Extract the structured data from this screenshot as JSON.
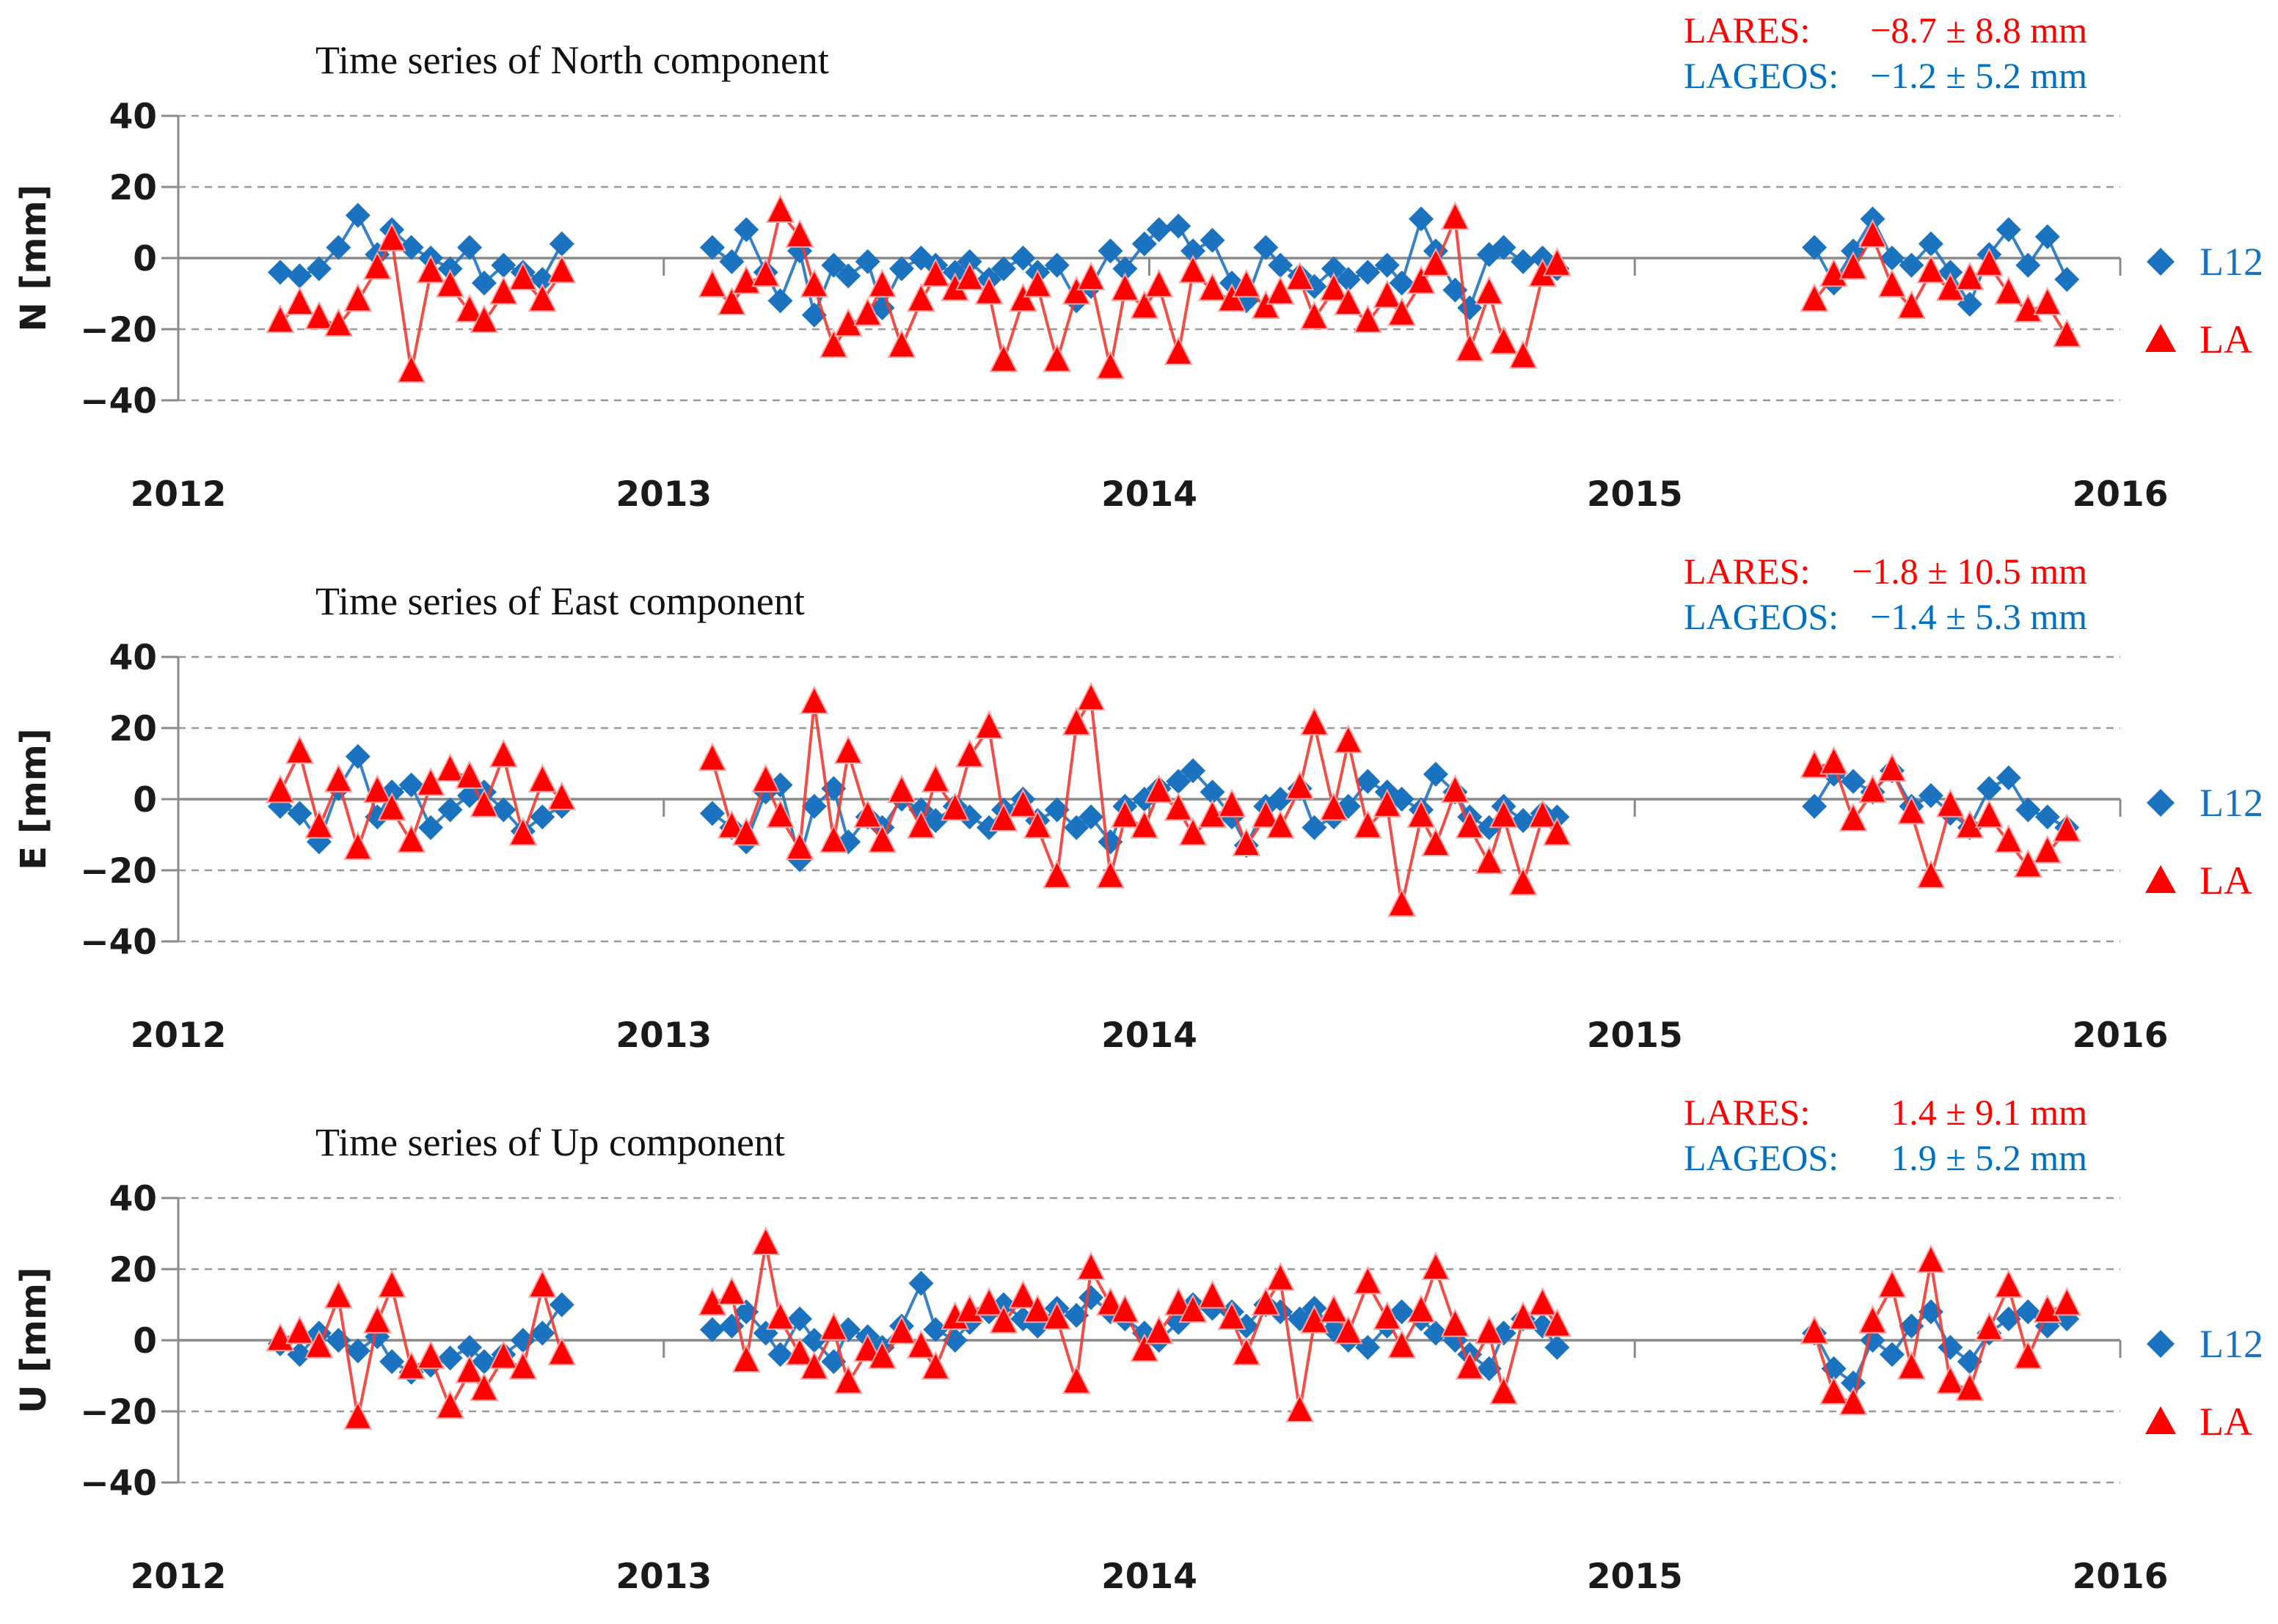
{
  "colors": {
    "lares_red": "#FF0000",
    "lares_line": "#F03B33",
    "lares_marker_edge": "#FFA3A3",
    "lageos_blue": "#1B72BE",
    "lageos_line": "#2273BE",
    "lageos_text_blue": "#0070C0",
    "grid_gray": "#999999",
    "axis_gray": "#8A8A8A",
    "tick_label": "#1A1A1A"
  },
  "legend": {
    "lageos_label": "L12",
    "lares_label": "LA"
  },
  "x_axis": {
    "years": [
      2012,
      2013,
      2014,
      2015,
      2016
    ],
    "range": [
      2012,
      2016
    ]
  },
  "y_axis": {
    "ticks": [
      40,
      20,
      0,
      -20,
      -40
    ],
    "ylim": [
      -40,
      40
    ],
    "unit": "mm"
  },
  "epochs": [
    2012.21,
    2012.25,
    2012.29,
    2012.33,
    2012.37,
    2012.41,
    2012.44,
    2012.48,
    2012.52,
    2012.56,
    2012.6,
    2012.63,
    2012.67,
    2012.71,
    2012.75,
    2012.79,
    2013.1,
    2013.14,
    2013.17,
    2013.21,
    2013.24,
    2013.28,
    2013.31,
    2013.35,
    2013.38,
    2013.42,
    2013.45,
    2013.49,
    2013.53,
    2013.56,
    2013.6,
    2013.63,
    2013.67,
    2013.7,
    2013.74,
    2013.77,
    2013.81,
    2013.85,
    2013.88,
    2013.92,
    2013.95,
    2013.99,
    2014.02,
    2014.06,
    2014.09,
    2014.13,
    2014.17,
    2014.2,
    2014.24,
    2014.27,
    2014.31,
    2014.34,
    2014.38,
    2014.41,
    2014.45,
    2014.49,
    2014.52,
    2014.56,
    2014.59,
    2014.63,
    2014.66,
    2014.7,
    2014.73,
    2014.77,
    2014.81,
    2014.84,
    2015.37,
    2015.41,
    2015.45,
    2015.49,
    2015.53,
    2015.57,
    2015.61,
    2015.65,
    2015.69,
    2015.73,
    2015.77,
    2015.81,
    2015.85,
    2015.89
  ],
  "chart_data": [
    {
      "type": "scatter",
      "title": "Time series of North component",
      "ylabel": "N [mm]",
      "xlabel": "",
      "ylim": [
        -40,
        40
      ],
      "legend_position": "right",
      "grid": true,
      "stats": {
        "lares_label": "LARES:",
        "lares_value": "−8.7 ± 8.8 mm",
        "lageos_label": "LAGEOS:",
        "lageos_value": "−1.2 ± 5.2 mm"
      },
      "series": [
        {
          "name": "L12",
          "satellite": "LAGEOS",
          "marker": "diamond",
          "values": [
            -4,
            -5,
            -3,
            3,
            12,
            1,
            8,
            3,
            0,
            -3,
            3,
            -7,
            -2,
            -4,
            -6,
            4,
            3,
            -1,
            8,
            -4,
            -12,
            2,
            -16,
            -2,
            -5,
            -1,
            -14,
            -3,
            0,
            -2,
            -4,
            -1,
            -6,
            -3,
            0,
            -4,
            -2,
            -12,
            -8,
            2,
            -3,
            4,
            8,
            9,
            2,
            5,
            -7,
            -12,
            3,
            -2,
            -5,
            -8,
            -3,
            -6,
            -4,
            -2,
            -7,
            11,
            2,
            -9,
            -14,
            1,
            3,
            -1,
            0,
            -3,
            3,
            -7,
            2,
            11,
            0,
            -2,
            4,
            -4,
            -13,
            1,
            8,
            -2,
            6,
            -6
          ]
        },
        {
          "name": "LA",
          "satellite": "LARES",
          "marker": "triangle",
          "values": [
            -18,
            -13,
            -17,
            -19,
            -12,
            -3,
            5,
            -32,
            -4,
            -8,
            -15,
            -18,
            -10,
            -6,
            -12,
            -4,
            -8,
            -13,
            -7,
            -5,
            13,
            6,
            -8,
            -25,
            -19,
            -16,
            -8,
            -25,
            -12,
            -5,
            -9,
            -6,
            -10,
            -29,
            -12,
            -8,
            -29,
            -10,
            -6,
            -31,
            -9,
            -14,
            -8,
            -27,
            -4,
            -9,
            -12,
            -8,
            -14,
            -10,
            -6,
            -17,
            -9,
            -13,
            -18,
            -11,
            -16,
            -7,
            -2,
            11,
            -26,
            -10,
            -24,
            -28,
            -5,
            -2,
            -12,
            -5,
            -3,
            6,
            -8,
            -14,
            -4,
            -9,
            -6,
            -2,
            -10,
            -15,
            -13,
            -22
          ]
        }
      ]
    },
    {
      "type": "scatter",
      "title": "Time series of East component",
      "ylabel": "E [mm]",
      "xlabel": "",
      "ylim": [
        -40,
        40
      ],
      "legend_position": "right",
      "grid": true,
      "stats": {
        "lares_label": "LARES:",
        "lares_value": "−1.8 ± 10.5 mm",
        "lageos_label": "LAGEOS:",
        "lageos_value": "−1.4 ± 5.3 mm"
      },
      "series": [
        {
          "name": "L12",
          "satellite": "LAGEOS",
          "marker": "diamond",
          "values": [
            -2,
            -4,
            -12,
            3,
            12,
            -5,
            2,
            4,
            -8,
            -3,
            1,
            2,
            -3,
            -9,
            -5,
            -2,
            -4,
            -8,
            -12,
            2,
            4,
            -17,
            -2,
            3,
            -12,
            -5,
            -8,
            0,
            -3,
            -6,
            -2,
            -5,
            -8,
            -3,
            0,
            -6,
            -3,
            -8,
            -5,
            -12,
            -2,
            0,
            3,
            5,
            8,
            2,
            -5,
            -13,
            -2,
            0,
            3,
            -8,
            -5,
            -2,
            5,
            2,
            0,
            -3,
            7,
            2,
            -5,
            -8,
            -2,
            -6,
            -4,
            -5,
            -2,
            7,
            5,
            2,
            8,
            -2,
            1,
            -4,
            -8,
            3,
            6,
            -3,
            -5,
            -8
          ]
        },
        {
          "name": "LA",
          "satellite": "LARES",
          "marker": "triangle",
          "values": [
            2,
            13,
            -8,
            5,
            -14,
            2,
            -3,
            -12,
            4,
            8,
            6,
            -2,
            12,
            -10,
            5,
            0,
            11,
            -8,
            -10,
            5,
            -5,
            -14,
            27,
            -12,
            13,
            -5,
            -12,
            2,
            -8,
            5,
            -3,
            12,
            20,
            -6,
            -2,
            -8,
            -22,
            21,
            28,
            -22,
            -5,
            -8,
            2,
            -3,
            -10,
            -5,
            -2,
            -13,
            -5,
            -8,
            3,
            21,
            -3,
            16,
            -8,
            -2,
            -30,
            -5,
            -13,
            2,
            -8,
            -18,
            -5,
            -24,
            -5,
            -10,
            9,
            10,
            -6,
            2,
            8,
            -4,
            -22,
            -2,
            -8,
            -5,
            -12,
            -19,
            -15,
            -9
          ]
        }
      ]
    },
    {
      "type": "scatter",
      "title": "Time series of Up component",
      "ylabel": "U [mm]",
      "xlabel": "",
      "ylim": [
        -40,
        40
      ],
      "legend_position": "right",
      "grid": true,
      "stats": {
        "lares_label": "LARES:",
        "lares_value": "1.4 ± 9.1 mm",
        "lageos_label": "LAGEOS:",
        "lageos_value": "1.9 ± 5.2 mm"
      },
      "series": [
        {
          "name": "L12",
          "satellite": "LAGEOS",
          "marker": "diamond",
          "values": [
            -1,
            -4,
            2,
            0,
            -3,
            1,
            -6,
            -9,
            -7,
            -5,
            -2,
            -6,
            -4,
            0,
            2,
            10,
            3,
            4,
            8,
            2,
            -4,
            6,
            0,
            -6,
            3,
            1,
            -2,
            4,
            16,
            3,
            0,
            5,
            8,
            10,
            6,
            4,
            9,
            7,
            12,
            8,
            6,
            2,
            0,
            5,
            10,
            9,
            8,
            4,
            10,
            8,
            6,
            9,
            3,
            0,
            -2,
            4,
            8,
            6,
            2,
            0,
            -4,
            -8,
            2,
            6,
            4,
            -2,
            2,
            -8,
            -12,
            0,
            -4,
            4,
            8,
            -2,
            -6,
            2,
            6,
            8,
            4,
            6
          ]
        },
        {
          "name": "LA",
          "satellite": "LARES",
          "marker": "triangle",
          "values": [
            0,
            2,
            -2,
            12,
            -22,
            5,
            15,
            -8,
            -5,
            -19,
            -9,
            -14,
            -5,
            -8,
            15,
            -4,
            10,
            13,
            -6,
            27,
            6,
            -4,
            -8,
            3,
            -12,
            -3,
            -5,
            2,
            -2,
            -8,
            6,
            8,
            10,
            5,
            12,
            8,
            6,
            -12,
            20,
            10,
            8,
            -3,
            2,
            10,
            8,
            12,
            6,
            -4,
            10,
            17,
            -20,
            5,
            8,
            2,
            16,
            6,
            -2,
            8,
            20,
            4,
            -8,
            2,
            -15,
            6,
            10,
            4,
            2,
            -15,
            -18,
            5,
            15,
            -8,
            22,
            -12,
            -14,
            3,
            15,
            -5,
            8,
            10
          ]
        }
      ]
    }
  ]
}
